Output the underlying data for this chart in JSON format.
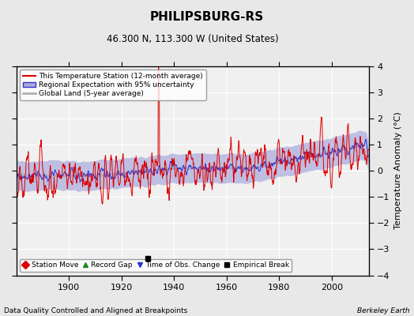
{
  "title": "PHILIPSBURG-RS",
  "subtitle": "46.300 N, 113.300 W (United States)",
  "xlabel_bottom": "Data Quality Controlled and Aligned at Breakpoints",
  "xlabel_right": "Berkeley Earth",
  "ylabel": "Temperature Anomaly (°C)",
  "ylim": [
    -4,
    4
  ],
  "xlim": [
    1880,
    2014
  ],
  "yticks": [
    -4,
    -3,
    -2,
    -1,
    0,
    1,
    2,
    3,
    4
  ],
  "xticks": [
    1900,
    1920,
    1940,
    1960,
    1980,
    2000
  ],
  "bg_color": "#e8e8e8",
  "plot_bg_color": "#f0f0f0",
  "grid_color": "#ffffff",
  "station_color": "#dd0000",
  "regional_color": "#3333cc",
  "regional_fill_color": "#aaaadd",
  "global_color": "#b0b0b0",
  "empirical_break_year": 1930,
  "empirical_break_value": -3.35,
  "legend_items": [
    {
      "label": "This Temperature Station (12-month average)",
      "color": "#dd0000"
    },
    {
      "label": "Regional Expectation with 95% uncertainty",
      "color": "#3333cc",
      "fill": "#aaaadd"
    },
    {
      "label": "Global Land (5-year average)",
      "color": "#b0b0b0"
    }
  ],
  "marker_items": [
    {
      "label": "Station Move",
      "color": "#dd0000",
      "marker": "D"
    },
    {
      "label": "Record Gap",
      "color": "#228822",
      "marker": "^"
    },
    {
      "label": "Time of Obs. Change",
      "color": "#3333cc",
      "marker": "v"
    },
    {
      "label": "Empirical Break",
      "color": "#000000",
      "marker": "s"
    }
  ]
}
